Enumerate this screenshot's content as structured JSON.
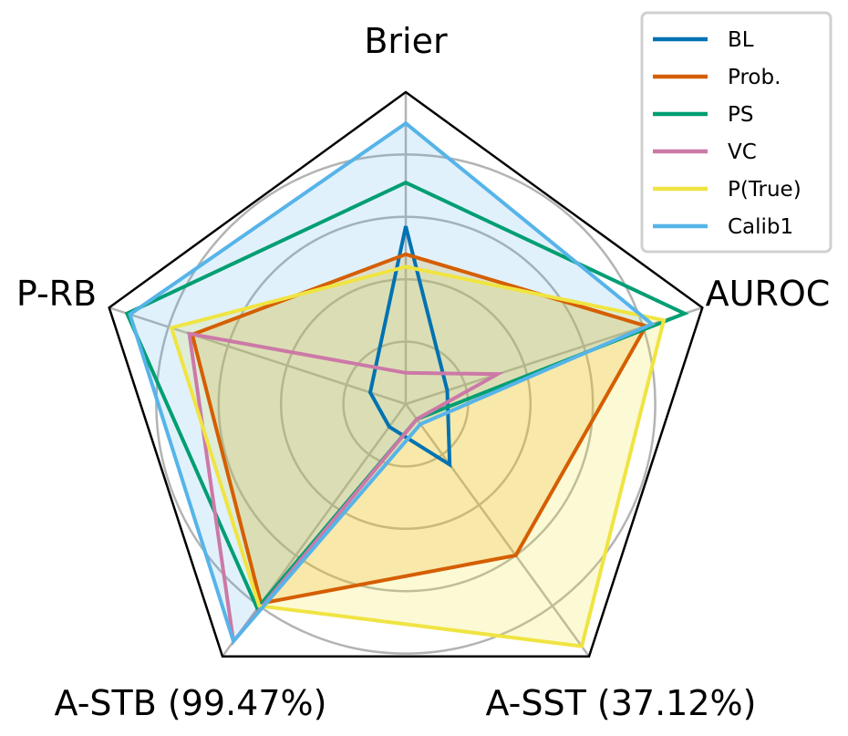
{
  "chart_data": {
    "type": "radar",
    "axes": [
      "Brier",
      "AUROC",
      "A-SST (37.12%)",
      "A-STB (99.47%)",
      "P-RB"
    ],
    "rlim": [
      0,
      1
    ],
    "grid": true,
    "rings": [
      0.2,
      0.4,
      0.6,
      0.8
    ],
    "legend_position": "top-right",
    "series": [
      {
        "name": "BL",
        "color": "#0072B2",
        "fill": false,
        "values": [
          0.57,
          0.14,
          0.24,
          0.09,
          0.12
        ]
      },
      {
        "name": "Prob.",
        "color": "#D55E00",
        "fill": true,
        "fill_color": "#E69F00",
        "fill_opacity": 0.22,
        "values": [
          0.48,
          0.81,
          0.6,
          0.79,
          0.72
        ]
      },
      {
        "name": "PS",
        "color": "#009E73",
        "fill": false,
        "values": [
          0.71,
          0.94,
          0.06,
          0.81,
          0.94
        ]
      },
      {
        "name": "VC",
        "color": "#CC79A7",
        "fill": false,
        "values": [
          0.1,
          0.31,
          0.06,
          0.94,
          0.73
        ]
      },
      {
        "name": "P(True)",
        "color": "#F0E442",
        "fill": true,
        "fill_opacity": 0.22,
        "values": [
          0.44,
          0.87,
          0.96,
          0.8,
          0.79
        ]
      },
      {
        "name": "Calib1",
        "color": "#56B4E9",
        "fill": true,
        "fill_opacity": 0.18,
        "values": [
          0.9,
          0.83,
          0.08,
          0.94,
          0.93
        ]
      }
    ]
  }
}
